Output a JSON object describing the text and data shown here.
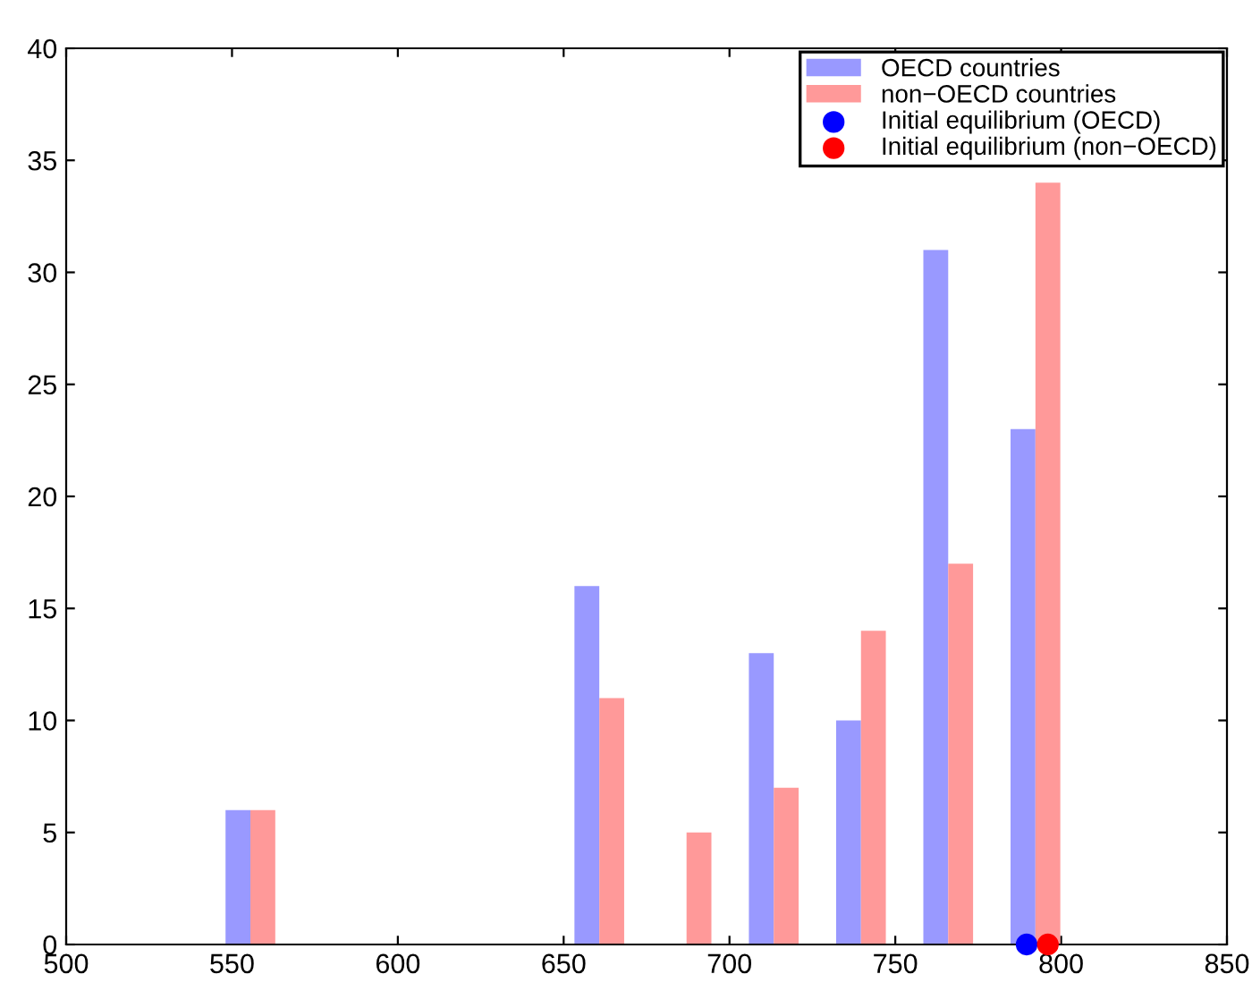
{
  "chart_data": {
    "type": "bar",
    "series": [
      {
        "name": "OECD countries",
        "color": "#9999ff",
        "x": [
          551.8,
          578.1,
          604.4,
          630.7,
          657.0,
          683.3,
          709.6,
          735.9,
          762.2,
          788.5
        ],
        "values": [
          6,
          0,
          0,
          0,
          16,
          0,
          13,
          10,
          31,
          23
        ]
      },
      {
        "name": "non−OECD countries",
        "color": "#ff9999",
        "x": [
          559.3,
          585.6,
          611.9,
          638.2,
          664.5,
          690.8,
          717.1,
          743.4,
          769.7,
          796.0
        ],
        "values": [
          6,
          0,
          0,
          0,
          11,
          5,
          7,
          14,
          17,
          34
        ]
      },
      {
        "name": "Initial equilibrium (OECD)",
        "type": "scatter",
        "color": "#0000ff",
        "x": [
          789.6
        ],
        "values": [
          0
        ]
      },
      {
        "name": "Initial equilibrium (non−OECD)",
        "type": "scatter",
        "color": "#ff0000",
        "x": [
          796.0
        ],
        "values": [
          0
        ]
      }
    ],
    "xlim": [
      500,
      850
    ],
    "xticks": [
      500,
      550,
      600,
      650,
      700,
      750,
      800,
      850
    ],
    "ylim": [
      0,
      40
    ],
    "yticks": [
      0,
      5,
      10,
      15,
      20,
      25,
      30,
      35,
      40
    ],
    "legend": "top right",
    "marker": "circle"
  }
}
